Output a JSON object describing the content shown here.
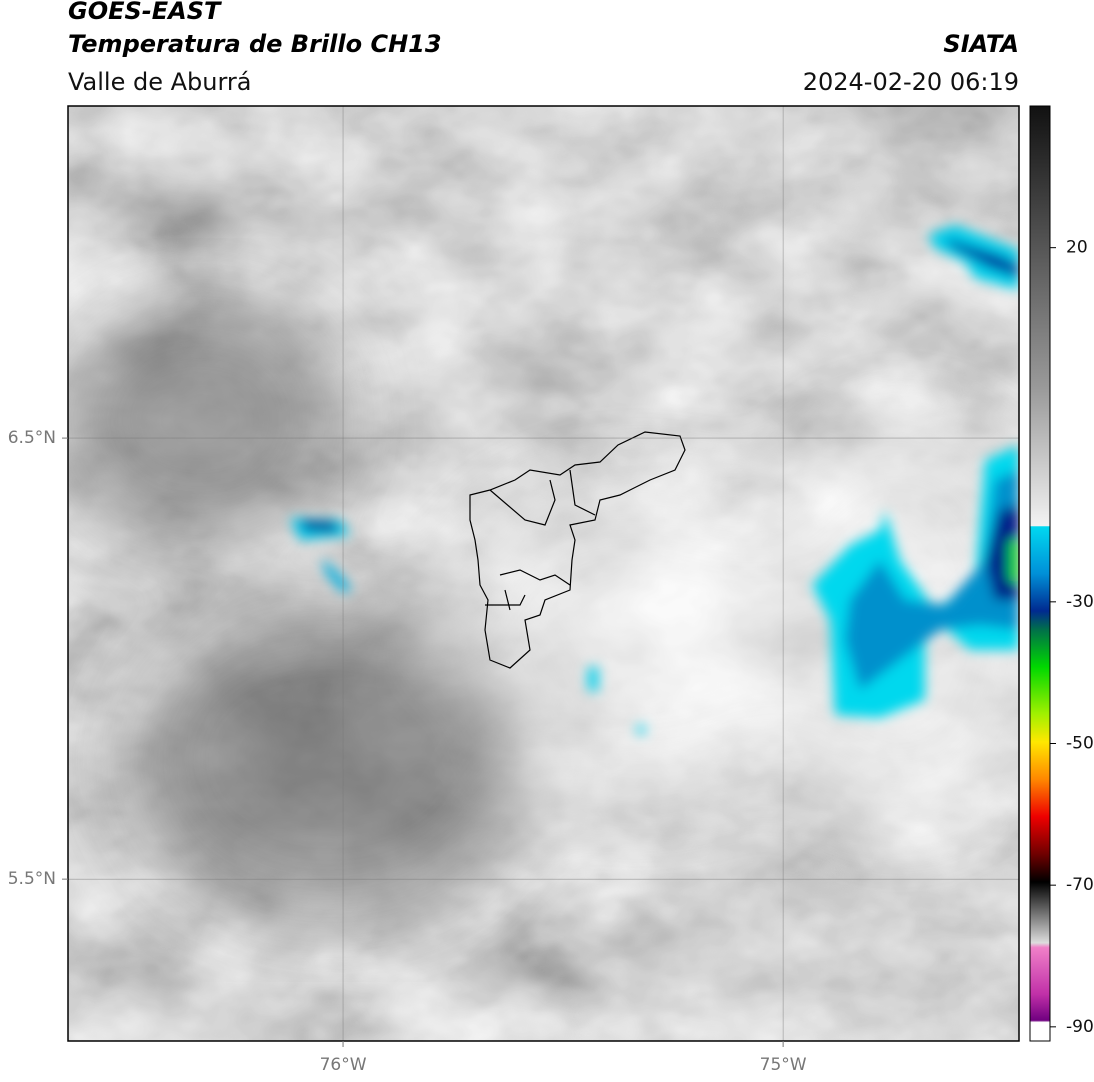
{
  "header": {
    "title": "GOES-EAST",
    "subtitle": "Temperatura de Brillo CH13",
    "region": "Valle de Aburrá",
    "source": "SIATA",
    "datetime": "2024-02-20 06:19"
  },
  "map": {
    "xlim": [
      -76.625,
      -74.464
    ],
    "ylim": [
      5.133,
      7.253
    ],
    "xticks": [
      {
        "value": -76,
        "label": "76°W"
      },
      {
        "value": -75,
        "label": "75°W"
      }
    ],
    "yticks": [
      {
        "value": 6.5,
        "label": "6.5°N"
      },
      {
        "value": 5.5,
        "label": "5.5°N"
      }
    ],
    "grid": true
  },
  "colorbar": {
    "lim": [
      -92,
      40
    ],
    "ticks": [
      20,
      -30,
      -50,
      -70,
      -90
    ]
  }
}
